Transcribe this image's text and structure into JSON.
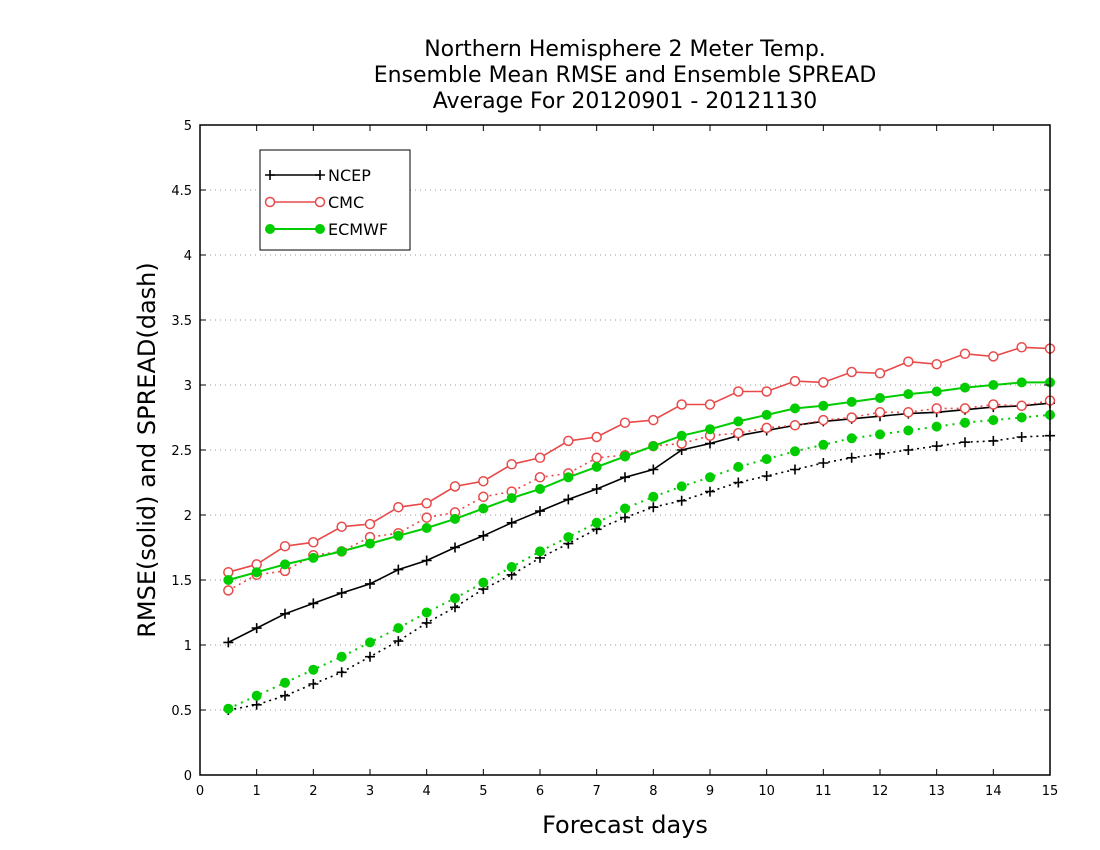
{
  "chart_data": {
    "type": "line",
    "title_lines": [
      "Northern Hemisphere 2 Meter Temp.",
      "Ensemble Mean RMSE and Ensemble SPREAD",
      "Average For 20120901 - 20121130"
    ],
    "xlabel": "Forecast days",
    "ylabel": "RMSE(solid) and SPREAD(dash)",
    "xlim": [
      0,
      15
    ],
    "ylim": [
      0,
      5
    ],
    "x_ticks": [
      "0",
      "1",
      "2",
      "3",
      "4",
      "5",
      "6",
      "7",
      "8",
      "9",
      "10",
      "11",
      "12",
      "13",
      "14",
      "15"
    ],
    "y_ticks": [
      "0",
      "0.5",
      "1",
      "1.5",
      "2",
      "2.5",
      "3",
      "3.5",
      "4",
      "4.5",
      "5"
    ],
    "grid": "horizontal dotted",
    "legend_position": "top-left",
    "x": [
      0.5,
      1,
      1.5,
      2,
      2.5,
      3,
      3.5,
      4,
      4.5,
      5,
      5.5,
      6,
      6.5,
      7,
      7.5,
      8,
      8.5,
      9,
      9.5,
      10,
      10.5,
      11,
      11.5,
      12,
      12.5,
      13,
      13.5,
      14,
      14.5,
      15
    ],
    "series": [
      {
        "name": "NCEP",
        "color": "#000000",
        "marker": "plus",
        "rmse": [
          1.02,
          1.13,
          1.24,
          1.32,
          1.4,
          1.47,
          1.58,
          1.65,
          1.75,
          1.84,
          1.94,
          2.03,
          2.12,
          2.2,
          2.29,
          2.35,
          2.5,
          2.55,
          2.61,
          2.65,
          2.69,
          2.72,
          2.74,
          2.76,
          2.78,
          2.79,
          2.81,
          2.83,
          2.84,
          2.86
        ],
        "spread": [
          0.5,
          0.54,
          0.61,
          0.7,
          0.79,
          0.91,
          1.03,
          1.17,
          1.29,
          1.43,
          1.54,
          1.67,
          1.78,
          1.89,
          1.98,
          2.06,
          2.11,
          2.18,
          2.25,
          2.3,
          2.35,
          2.4,
          2.44,
          2.47,
          2.5,
          2.53,
          2.56,
          2.57,
          2.6,
          2.61
        ]
      },
      {
        "name": "CMC",
        "color": "#e84a4a",
        "marker": "open-circle",
        "rmse": [
          1.56,
          1.62,
          1.76,
          1.79,
          1.91,
          1.93,
          2.06,
          2.09,
          2.22,
          2.26,
          2.39,
          2.44,
          2.57,
          2.6,
          2.71,
          2.73,
          2.85,
          2.85,
          2.95,
          2.95,
          3.03,
          3.02,
          3.1,
          3.09,
          3.18,
          3.16,
          3.24,
          3.22,
          3.29,
          3.28
        ],
        "spread": [
          1.42,
          1.54,
          1.57,
          1.69,
          1.72,
          1.83,
          1.86,
          1.98,
          2.02,
          2.14,
          2.18,
          2.29,
          2.32,
          2.44,
          2.46,
          2.53,
          2.55,
          2.61,
          2.63,
          2.67,
          2.69,
          2.73,
          2.75,
          2.79,
          2.79,
          2.82,
          2.82,
          2.85,
          2.84,
          2.88
        ]
      },
      {
        "name": "ECMWF",
        "color": "#00cc00",
        "marker": "filled-circle",
        "rmse": [
          1.5,
          1.56,
          1.62,
          1.67,
          1.72,
          1.78,
          1.84,
          1.9,
          1.97,
          2.05,
          2.13,
          2.2,
          2.29,
          2.37,
          2.45,
          2.53,
          2.61,
          2.66,
          2.72,
          2.77,
          2.82,
          2.84,
          2.87,
          2.9,
          2.93,
          2.95,
          2.98,
          3.0,
          3.02,
          3.02
        ],
        "spread": [
          0.51,
          0.61,
          0.71,
          0.81,
          0.91,
          1.02,
          1.13,
          1.25,
          1.36,
          1.48,
          1.6,
          1.72,
          1.83,
          1.94,
          2.05,
          2.14,
          2.22,
          2.29,
          2.37,
          2.43,
          2.49,
          2.54,
          2.59,
          2.62,
          2.65,
          2.68,
          2.71,
          2.73,
          2.75,
          2.77
        ]
      }
    ]
  }
}
